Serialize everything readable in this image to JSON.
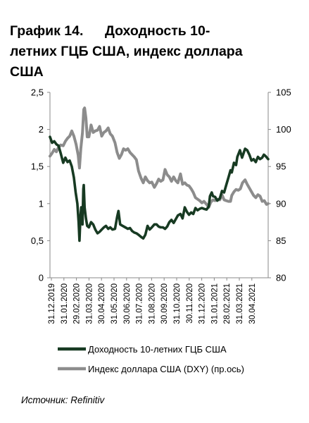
{
  "title": {
    "number": "График 14.",
    "line1": "Доходность 10-",
    "line2": "летних ГЦБ США, индекс доллара",
    "line3": "США"
  },
  "source": "Источник: Refinitiv",
  "chart_data": {
    "type": "line",
    "title": "График 14. Доходность 10-летних ГЦБ США, индекс доллара США",
    "x_tick_labels": [
      "31.12.2019",
      "31.01.2020",
      "29.02.2020",
      "31.03.2020",
      "30.04.2020",
      "31.05.2020",
      "30.06.2020",
      "31.07.2020",
      "31.08.2020",
      "30.09.2020",
      "31.10.2020",
      "30.11.2020",
      "31.12.2020",
      "31.01.2021",
      "28.02.2021",
      "31.03.2021",
      "30.04.2021"
    ],
    "x_range": [
      "2019-12-31",
      "2021-05-24"
    ],
    "y_left": {
      "ylim": [
        0,
        2.5
      ],
      "ticks": [
        "0",
        "0,5",
        "1",
        "1,5",
        "2",
        "2,5"
      ]
    },
    "y_right": {
      "ylim": [
        80,
        105
      ],
      "ticks": [
        "80",
        "85",
        "90",
        "95",
        "100",
        "105"
      ]
    },
    "grid": false,
    "legend_position": "bottom",
    "series": [
      {
        "name": "Доходность 10-летних ГЦБ США",
        "axis": "left",
        "color": "#173a22",
        "points": [
          [
            "2019-12-31",
            1.9
          ],
          [
            "2020-01-05",
            1.82
          ],
          [
            "2020-01-10",
            1.84
          ],
          [
            "2020-01-15",
            1.8
          ],
          [
            "2020-01-20",
            1.78
          ],
          [
            "2020-01-25",
            1.68
          ],
          [
            "2020-01-31",
            1.55
          ],
          [
            "2020-02-05",
            1.62
          ],
          [
            "2020-02-10",
            1.56
          ],
          [
            "2020-02-15",
            1.58
          ],
          [
            "2020-02-20",
            1.5
          ],
          [
            "2020-02-25",
            1.35
          ],
          [
            "2020-02-29",
            1.15
          ],
          [
            "2020-03-04",
            1.0
          ],
          [
            "2020-03-07",
            0.75
          ],
          [
            "2020-03-09",
            0.5
          ],
          [
            "2020-03-11",
            0.8
          ],
          [
            "2020-03-13",
            0.95
          ],
          [
            "2020-03-16",
            0.72
          ],
          [
            "2020-03-18",
            1.2
          ],
          [
            "2020-03-19",
            1.25
          ],
          [
            "2020-03-21",
            0.95
          ],
          [
            "2020-03-24",
            0.8
          ],
          [
            "2020-03-27",
            0.7
          ],
          [
            "2020-03-31",
            0.68
          ],
          [
            "2020-04-05",
            0.75
          ],
          [
            "2020-04-10",
            0.72
          ],
          [
            "2020-04-15",
            0.65
          ],
          [
            "2020-04-20",
            0.6
          ],
          [
            "2020-04-25",
            0.62
          ],
          [
            "2020-04-30",
            0.65
          ],
          [
            "2020-05-05",
            0.68
          ],
          [
            "2020-05-10",
            0.7
          ],
          [
            "2020-05-15",
            0.66
          ],
          [
            "2020-05-20",
            0.68
          ],
          [
            "2020-05-25",
            0.65
          ],
          [
            "2020-05-31",
            0.66
          ],
          [
            "2020-06-05",
            0.82
          ],
          [
            "2020-06-08",
            0.9
          ],
          [
            "2020-06-12",
            0.72
          ],
          [
            "2020-06-18",
            0.7
          ],
          [
            "2020-06-24",
            0.68
          ],
          [
            "2020-06-30",
            0.66
          ],
          [
            "2020-07-05",
            0.67
          ],
          [
            "2020-07-10",
            0.63
          ],
          [
            "2020-07-15",
            0.61
          ],
          [
            "2020-07-20",
            0.6
          ],
          [
            "2020-07-25",
            0.58
          ],
          [
            "2020-07-31",
            0.55
          ],
          [
            "2020-08-05",
            0.53
          ],
          [
            "2020-08-10",
            0.58
          ],
          [
            "2020-08-15",
            0.7
          ],
          [
            "2020-08-20",
            0.65
          ],
          [
            "2020-08-25",
            0.68
          ],
          [
            "2020-08-31",
            0.72
          ],
          [
            "2020-09-05",
            0.72
          ],
          [
            "2020-09-10",
            0.69
          ],
          [
            "2020-09-15",
            0.68
          ],
          [
            "2020-09-20",
            0.68
          ],
          [
            "2020-09-25",
            0.66
          ],
          [
            "2020-09-30",
            0.69
          ],
          [
            "2020-10-05",
            0.75
          ],
          [
            "2020-10-10",
            0.78
          ],
          [
            "2020-10-15",
            0.74
          ],
          [
            "2020-10-20",
            0.79
          ],
          [
            "2020-10-25",
            0.84
          ],
          [
            "2020-10-31",
            0.86
          ],
          [
            "2020-11-05",
            0.8
          ],
          [
            "2020-11-10",
            0.95
          ],
          [
            "2020-11-15",
            0.89
          ],
          [
            "2020-11-20",
            0.85
          ],
          [
            "2020-11-25",
            0.88
          ],
          [
            "2020-11-30",
            0.86
          ],
          [
            "2020-12-05",
            0.94
          ],
          [
            "2020-12-10",
            0.91
          ],
          [
            "2020-12-15",
            0.93
          ],
          [
            "2020-12-20",
            0.94
          ],
          [
            "2020-12-25",
            0.93
          ],
          [
            "2020-12-31",
            0.92
          ],
          [
            "2021-01-05",
            0.96
          ],
          [
            "2021-01-08",
            1.1
          ],
          [
            "2021-01-12",
            1.15
          ],
          [
            "2021-01-15",
            1.1
          ],
          [
            "2021-01-20",
            1.09
          ],
          [
            "2021-01-25",
            1.04
          ],
          [
            "2021-01-31",
            1.07
          ],
          [
            "2021-02-05",
            1.17
          ],
          [
            "2021-02-10",
            1.15
          ],
          [
            "2021-02-15",
            1.25
          ],
          [
            "2021-02-20",
            1.35
          ],
          [
            "2021-02-25",
            1.45
          ],
          [
            "2021-02-28",
            1.42
          ],
          [
            "2021-03-05",
            1.55
          ],
          [
            "2021-03-10",
            1.52
          ],
          [
            "2021-03-13",
            1.63
          ],
          [
            "2021-03-19",
            1.72
          ],
          [
            "2021-03-24",
            1.62
          ],
          [
            "2021-03-31",
            1.74
          ],
          [
            "2021-04-05",
            1.72
          ],
          [
            "2021-04-10",
            1.66
          ],
          [
            "2021-04-15",
            1.58
          ],
          [
            "2021-04-20",
            1.6
          ],
          [
            "2021-04-25",
            1.56
          ],
          [
            "2021-04-30",
            1.63
          ],
          [
            "2021-05-05",
            1.6
          ],
          [
            "2021-05-10",
            1.62
          ],
          [
            "2021-05-14",
            1.66
          ],
          [
            "2021-05-18",
            1.64
          ],
          [
            "2021-05-24",
            1.6
          ]
        ]
      },
      {
        "name": "Индекс доллара США (DXY) (пр.ось)",
        "axis": "right",
        "color": "#8c8c8c",
        "points": [
          [
            "2019-12-31",
            96.4
          ],
          [
            "2020-01-05",
            96.8
          ],
          [
            "2020-01-10",
            97.3
          ],
          [
            "2020-01-15",
            97.0
          ],
          [
            "2020-01-20",
            97.6
          ],
          [
            "2020-01-25",
            97.9
          ],
          [
            "2020-01-31",
            97.8
          ],
          [
            "2020-02-05",
            98.4
          ],
          [
            "2020-02-10",
            98.8
          ],
          [
            "2020-02-15",
            99.1
          ],
          [
            "2020-02-20",
            99.8
          ],
          [
            "2020-02-25",
            99.1
          ],
          [
            "2020-03-01",
            98.0
          ],
          [
            "2020-03-06",
            96.5
          ],
          [
            "2020-03-09",
            94.8
          ],
          [
            "2020-03-12",
            97.4
          ],
          [
            "2020-03-16",
            99.6
          ],
          [
            "2020-03-19",
            102.7
          ],
          [
            "2020-03-21",
            102.9
          ],
          [
            "2020-03-24",
            101.5
          ],
          [
            "2020-03-27",
            99.0
          ],
          [
            "2020-03-31",
            99.0
          ],
          [
            "2020-04-05",
            100.6
          ],
          [
            "2020-04-10",
            99.6
          ],
          [
            "2020-04-15",
            99.8
          ],
          [
            "2020-04-20",
            99.9
          ],
          [
            "2020-04-25",
            100.4
          ],
          [
            "2020-04-30",
            99.1
          ],
          [
            "2020-05-05",
            99.6
          ],
          [
            "2020-05-10",
            99.8
          ],
          [
            "2020-05-15",
            100.2
          ],
          [
            "2020-05-20",
            99.4
          ],
          [
            "2020-05-25",
            99.1
          ],
          [
            "2020-05-31",
            98.2
          ],
          [
            "2020-06-05",
            96.9
          ],
          [
            "2020-06-10",
            96.1
          ],
          [
            "2020-06-15",
            96.6
          ],
          [
            "2020-06-20",
            97.4
          ],
          [
            "2020-06-25",
            97.2
          ],
          [
            "2020-06-30",
            97.4
          ],
          [
            "2020-07-05",
            96.9
          ],
          [
            "2020-07-10",
            96.6
          ],
          [
            "2020-07-15",
            96.3
          ],
          [
            "2020-07-20",
            95.9
          ],
          [
            "2020-07-25",
            94.4
          ],
          [
            "2020-07-31",
            93.4
          ],
          [
            "2020-08-05",
            92.8
          ],
          [
            "2020-08-10",
            93.6
          ],
          [
            "2020-08-15",
            93.1
          ],
          [
            "2020-08-20",
            92.8
          ],
          [
            "2020-08-25",
            92.9
          ],
          [
            "2020-08-31",
            92.2
          ],
          [
            "2020-09-05",
            92.7
          ],
          [
            "2020-09-10",
            93.3
          ],
          [
            "2020-09-15",
            93.0
          ],
          [
            "2020-09-20",
            93.2
          ],
          [
            "2020-09-25",
            94.6
          ],
          [
            "2020-09-30",
            93.9
          ],
          [
            "2020-10-05",
            93.6
          ],
          [
            "2020-10-10",
            93.0
          ],
          [
            "2020-10-15",
            93.6
          ],
          [
            "2020-10-20",
            93.1
          ],
          [
            "2020-10-25",
            92.8
          ],
          [
            "2020-10-31",
            94.0
          ],
          [
            "2020-11-05",
            92.6
          ],
          [
            "2020-11-10",
            92.8
          ],
          [
            "2020-11-15",
            92.5
          ],
          [
            "2020-11-20",
            92.4
          ],
          [
            "2020-11-25",
            92.0
          ],
          [
            "2020-11-30",
            91.5
          ],
          [
            "2020-12-05",
            90.8
          ],
          [
            "2020-12-10",
            90.6
          ],
          [
            "2020-12-15",
            90.4
          ],
          [
            "2020-12-20",
            90.1
          ],
          [
            "2020-12-25",
            90.3
          ],
          [
            "2020-12-31",
            89.9
          ],
          [
            "2021-01-05",
            89.5
          ],
          [
            "2021-01-10",
            90.2
          ],
          [
            "2021-01-15",
            90.5
          ],
          [
            "2021-01-20",
            90.4
          ],
          [
            "2021-01-25",
            90.6
          ],
          [
            "2021-01-31",
            90.5
          ],
          [
            "2021-02-05",
            91.2
          ],
          [
            "2021-02-10",
            90.5
          ],
          [
            "2021-02-15",
            90.4
          ],
          [
            "2021-02-20",
            90.3
          ],
          [
            "2021-02-25",
            90.3
          ],
          [
            "2021-02-28",
            91.1
          ],
          [
            "2021-03-05",
            91.6
          ],
          [
            "2021-03-10",
            91.9
          ],
          [
            "2021-03-15",
            91.8
          ],
          [
            "2021-03-20",
            92.0
          ],
          [
            "2021-03-25",
            92.8
          ],
          [
            "2021-03-31",
            93.2
          ],
          [
            "2021-04-05",
            92.6
          ],
          [
            "2021-04-10",
            92.1
          ],
          [
            "2021-04-15",
            91.6
          ],
          [
            "2021-04-20",
            91.1
          ],
          [
            "2021-04-25",
            90.8
          ],
          [
            "2021-04-30",
            91.2
          ],
          [
            "2021-05-05",
            91.0
          ],
          [
            "2021-05-10",
            90.3
          ],
          [
            "2021-05-15",
            90.4
          ],
          [
            "2021-05-20",
            89.9
          ],
          [
            "2021-05-24",
            90.0
          ]
        ]
      }
    ]
  }
}
